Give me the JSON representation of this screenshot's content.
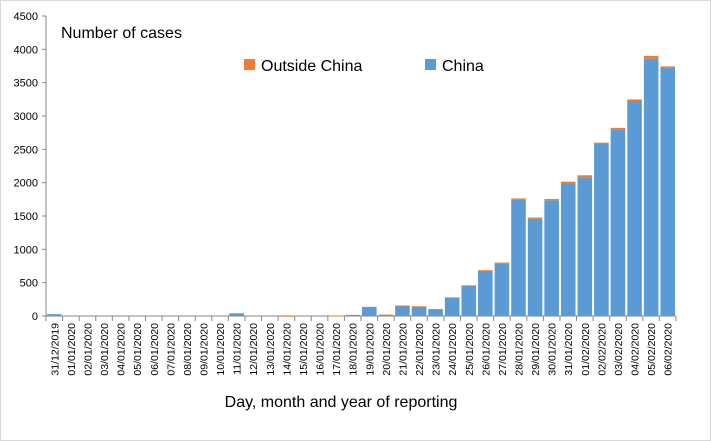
{
  "chart_data": {
    "type": "bar",
    "stacked": true,
    "title": "Number of cases",
    "xlabel": "Day, month and year of reporting",
    "ylabel": "",
    "ylim": [
      0,
      4500
    ],
    "yticks": [
      0,
      500,
      1000,
      1500,
      2000,
      2500,
      3000,
      3500,
      4000,
      4500
    ],
    "grid": false,
    "legend_position": "top-center",
    "categories": [
      "31/12/2019",
      "01/01/2020",
      "02/01/2020",
      "03/01/2020",
      "04/01/2020",
      "05/01/2020",
      "06/01/2020",
      "07/01/2020",
      "08/01/2020",
      "09/01/2020",
      "10/01/2020",
      "11/01/2020",
      "12/01/2020",
      "13/01/2020",
      "14/01/2020",
      "15/01/2020",
      "16/01/2020",
      "17/01/2020",
      "18/01/2020",
      "19/01/2020",
      "20/01/2020",
      "21/01/2020",
      "22/01/2020",
      "23/01/2020",
      "24/01/2020",
      "25/01/2020",
      "26/01/2020",
      "27/01/2020",
      "28/01/2020",
      "29/01/2020",
      "30/01/2020",
      "31/01/2020",
      "01/02/2020",
      "02/02/2020",
      "03/02/2020",
      "04/02/2020",
      "05/02/2020",
      "06/02/2020"
    ],
    "series": [
      {
        "name": "China",
        "color": "#5b9bd5",
        "values": [
          27,
          0,
          0,
          0,
          0,
          0,
          0,
          0,
          0,
          0,
          0,
          41,
          0,
          0,
          0,
          0,
          0,
          4,
          17,
          136,
          19,
          151,
          140,
          97,
          275,
          450,
          675,
          785,
          1750,
          1460,
          1735,
          1980,
          2080,
          2590,
          2800,
          3225,
          3860,
          3725
        ]
      },
      {
        "name": "Outside China",
        "color": "#ed7d31",
        "values": [
          0,
          0,
          0,
          0,
          0,
          0,
          0,
          0,
          0,
          0,
          0,
          0,
          0,
          0,
          1,
          0,
          0,
          1,
          0,
          1,
          2,
          6,
          6,
          7,
          5,
          10,
          12,
          17,
          14,
          18,
          20,
          35,
          31,
          10,
          22,
          24,
          42,
          20
        ]
      }
    ]
  }
}
